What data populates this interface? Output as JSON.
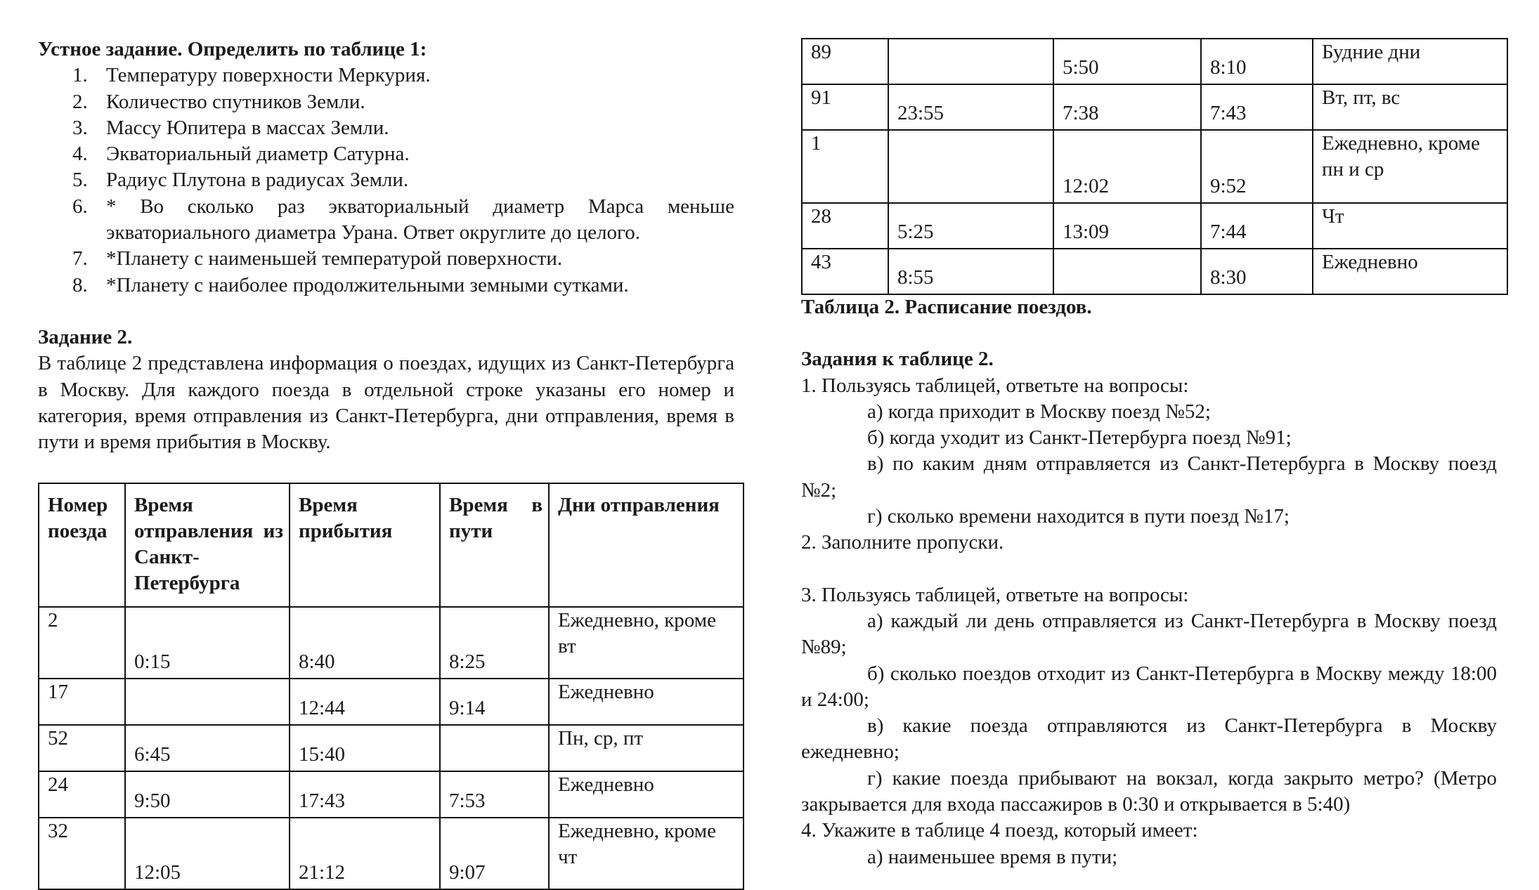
{
  "oral_task": {
    "heading": "Устное задание. Определить по таблице 1:",
    "items": [
      {
        "num": "1.",
        "text": "Температуру поверхности Меркурия."
      },
      {
        "num": "2.",
        "text": "Количество спутников Земли."
      },
      {
        "num": "3.",
        "text": "Массу Юпитера в массах Земли."
      },
      {
        "num": "4.",
        "text": "Экваториальный диаметр Сатурна."
      },
      {
        "num": "5.",
        "text": "Радиус Плутона в радиусах Земли."
      },
      {
        "num": "6.",
        "text": "* Во сколько раз экваториальный диаметр Марса меньше экваториального диаметра Урана. Ответ округлите до целого."
      },
      {
        "num": "7.",
        "text": "*Планету с наименьшей температурой поверхности."
      },
      {
        "num": "8.",
        "text": "*Планету с наиболее продолжительными земными сутками."
      }
    ]
  },
  "task2": {
    "heading": "Задание 2.",
    "paragraph": "В таблице 2 представлена информация о поездах, идущих из Санкт-Петербурга в Москву. Для каждого поезда в отдельной строке указаны его номер и категория, время отправления из Санкт-Петербурга, дни отправления, время в пути и время прибытия в Москву."
  },
  "table_left": {
    "headers": [
      "Номер поезда",
      "Время отправления из Санкт-Петербурга",
      "Время прибытия",
      "Время в пути",
      "Дни отправления"
    ],
    "rows": [
      [
        "2",
        "0:15",
        "8:40",
        "8:25",
        "Ежедневно, кроме вт"
      ],
      [
        "17",
        "",
        "12:44",
        "9:14",
        "Ежедневно"
      ],
      [
        "52",
        "6:45",
        "15:40",
        "",
        "Пн, ср, пт"
      ],
      [
        "24",
        "9:50",
        "17:43",
        "7:53",
        "Ежедневно"
      ],
      [
        "32",
        "12:05",
        "21:12",
        "9:07",
        "Ежедневно, кроме чт"
      ]
    ]
  },
  "table_right": {
    "rows": [
      [
        "89",
        "",
        "5:50",
        "8:10",
        "Будние дни"
      ],
      [
        "91",
        "23:55",
        "7:38",
        "7:43",
        "Вт, пт, вс"
      ],
      [
        "1",
        "",
        "12:02",
        "9:52",
        "Ежедневно, кроме пн и ср"
      ],
      [
        "28",
        "5:25",
        "13:09",
        "7:44",
        "Чт"
      ],
      [
        "43",
        "8:55",
        "",
        "8:30",
        "Ежедневно"
      ]
    ],
    "caption": "Таблица 2. Расписание поездов."
  },
  "tasks_table2": {
    "heading": "Задания к таблице 2.",
    "lines": [
      {
        "type": "plain",
        "text": "1. Пользуясь таблицей, ответьте на вопросы:"
      },
      {
        "type": "task",
        "text": "а) когда приходит в Москву поезд №52;"
      },
      {
        "type": "task",
        "text": "б) когда уходит из Санкт-Петербурга поезд №91;"
      },
      {
        "type": "task",
        "text": "в) по каким дням отправляется из Санкт-Петербурга в Москву поезд №2;"
      },
      {
        "type": "task",
        "text": "г) сколько времени находится в пути поезд №17;"
      },
      {
        "type": "plain",
        "text": "2. Заполните пропуски."
      },
      {
        "type": "blank",
        "text": ""
      },
      {
        "type": "plain",
        "text": "3. Пользуясь таблицей, ответьте на вопросы:"
      },
      {
        "type": "task",
        "text": "а) каждый ли день отправляется из Санкт-Петербурга в Москву поезд №89;"
      },
      {
        "type": "task",
        "text": "б) сколько поездов отходит из Санкт-Петербурга в Москву между 18:00 и 24:00;"
      },
      {
        "type": "task",
        "text": "в) какие поезда отправляются из Санкт-Петербурга в Москву ежедневно;"
      },
      {
        "type": "task",
        "text": "г) какие поезда прибывают на вокзал, когда закрыто метро? (Метро закрывается для входа пассажиров в 0:30 и открывается в 5:40)"
      },
      {
        "type": "plain",
        "text": "4. Укажите в таблице 4 поезд, который имеет:"
      },
      {
        "type": "task",
        "text": "а) наименьшее время в пути;"
      }
    ]
  }
}
